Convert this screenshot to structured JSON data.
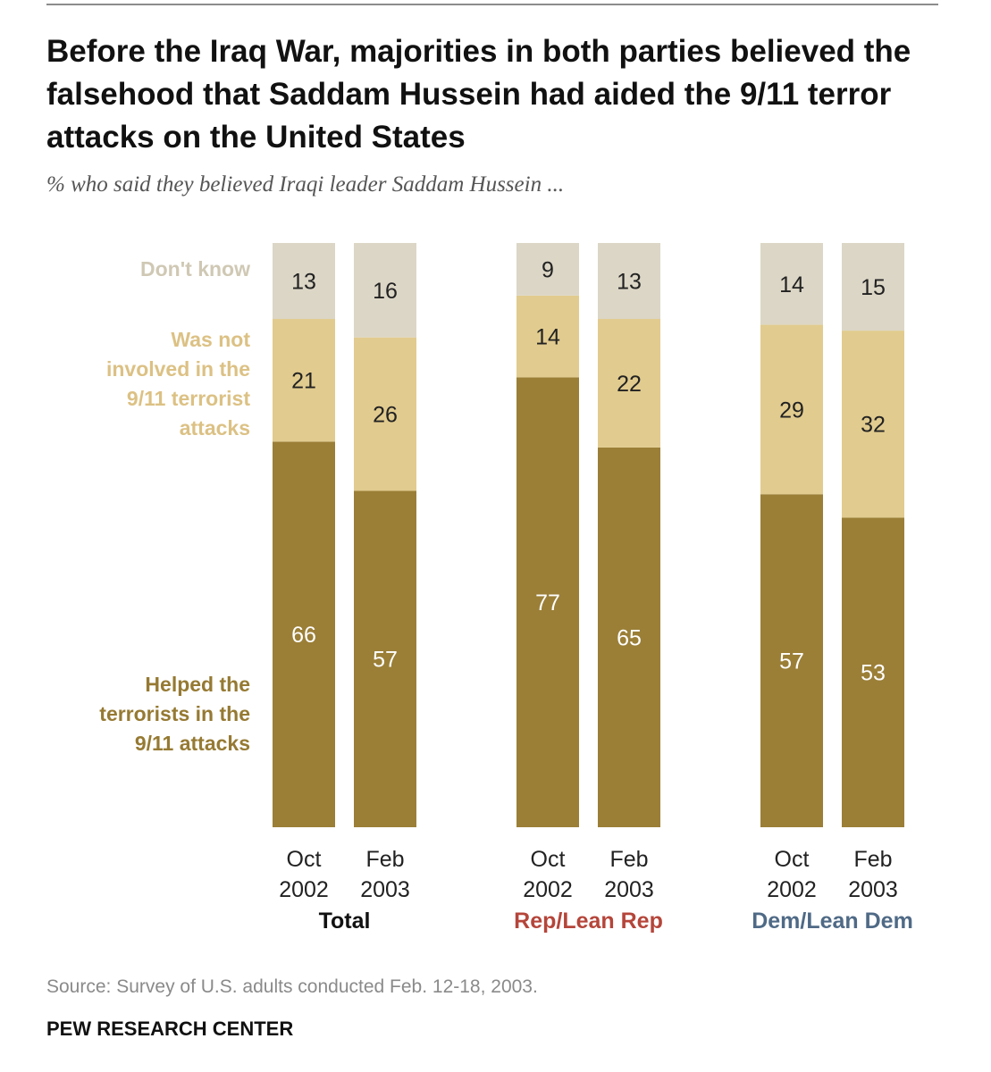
{
  "chart_data": {
    "type": "bar",
    "stacked": true,
    "title": "Before the Iraq War, majorities in both parties believed the falsehood that Saddam Hussein had aided the 9/11 terror attacks on the United States",
    "subtitle": "% who said they believed Iraqi leader Saddam Hussein ...",
    "ylim": [
      0,
      100
    ],
    "groups": [
      {
        "name": "Total",
        "color": "#111111",
        "bars": [
          {
            "month": "Oct",
            "year": "2002",
            "helped": 66,
            "not_involved": 21,
            "dont_know": 13
          },
          {
            "month": "Feb",
            "year": "2003",
            "helped": 57,
            "not_involved": 26,
            "dont_know": 16
          }
        ]
      },
      {
        "name": "Rep/Lean Rep",
        "color": "#b5453a",
        "bars": [
          {
            "month": "Oct",
            "year": "2002",
            "helped": 77,
            "not_involved": 14,
            "dont_know": 9
          },
          {
            "month": "Feb",
            "year": "2003",
            "helped": 65,
            "not_involved": 22,
            "dont_know": 13
          }
        ]
      },
      {
        "name": "Dem/Lean Dem",
        "color": "#4f6a86",
        "bars": [
          {
            "month": "Oct",
            "year": "2002",
            "helped": 57,
            "not_involved": 29,
            "dont_know": 14
          },
          {
            "month": "Feb",
            "year": "2003",
            "helped": 53,
            "not_involved": 32,
            "dont_know": 15
          }
        ]
      }
    ],
    "series": [
      {
        "key": "dont_know",
        "name": "Don't know",
        "legend_lines": [
          "Don't know"
        ],
        "color": "#dcd6c6",
        "label_color": "#222222",
        "legend_color": "#cfc8b4"
      },
      {
        "key": "not_involved",
        "name": "Was not involved in the 9/11 terrorist attacks",
        "legend_lines": [
          "Was not",
          "involved in the",
          "9/11 terrorist",
          "attacks"
        ],
        "color": "#e1cb8e",
        "label_color": "#222222",
        "legend_color": "#dcc184"
      },
      {
        "key": "helped",
        "name": "Helped the terrorists in the 9/11 attacks",
        "legend_lines": [
          "Helped the",
          "terrorists in the",
          "9/11 attacks"
        ],
        "color": "#9b7f37",
        "label_color": "#ffffff",
        "legend_color": "#967a33"
      }
    ]
  },
  "footer": {
    "source": "Source: Survey of U.S. adults conducted Feb. 12-18, 2003.",
    "brand": "PEW RESEARCH CENTER"
  }
}
